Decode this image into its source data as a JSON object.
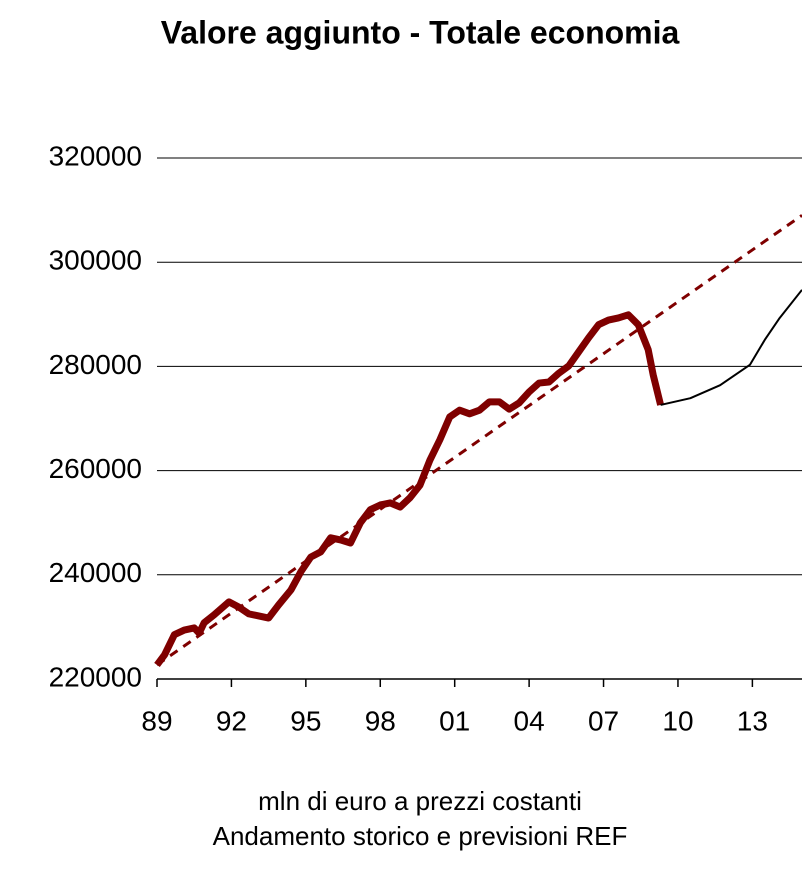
{
  "chart_data": {
    "type": "line",
    "title": "Valore aggiunto - Totale economia",
    "subtitle": [
      "mln di euro a prezzi costanti",
      "Andamento storico e previsioni REF"
    ],
    "xlim": [
      1989,
      2015
    ],
    "xticks": [
      {
        "value": 1989,
        "label": "89"
      },
      {
        "value": 1992,
        "label": "92"
      },
      {
        "value": 1995,
        "label": "95"
      },
      {
        "value": 1998,
        "label": "98"
      },
      {
        "value": 2001,
        "label": "01"
      },
      {
        "value": 2004,
        "label": "04"
      },
      {
        "value": 2007,
        "label": "07"
      },
      {
        "value": 2010,
        "label": "10"
      },
      {
        "value": 2013,
        "label": "13"
      }
    ],
    "ylim": [
      220000,
      320000
    ],
    "yticks": [
      220000,
      240000,
      260000,
      280000,
      300000,
      320000
    ],
    "grid": true,
    "series": [
      {
        "color": "#7f0000",
        "line_style": "solid",
        "x": [
          1989.0,
          1989.3,
          1989.7,
          1990.1,
          1990.5,
          1990.7,
          1990.9,
          1991.3,
          1991.9,
          1992.3,
          1992.7,
          1993.1,
          1993.5,
          1993.9,
          1994.4,
          1994.8,
          1995.2,
          1995.6,
          1996.0,
          1996.4,
          1996.8,
          1997.2,
          1997.6,
          1998.0,
          1998.4,
          1998.8,
          1999.2,
          1999.6,
          2000.0,
          2000.4,
          2000.8,
          2001.2,
          2001.6,
          2002.0,
          2002.4,
          2002.8,
          2003.2,
          2003.6,
          2004.0,
          2004.4,
          2004.8,
          2005.2,
          2005.6,
          2006.0,
          2006.4,
          2006.8,
          2007.2,
          2007.6,
          2008.0,
          2008.4,
          2008.8,
          2009.0,
          2009.3
        ],
        "values": [
          222700,
          224600,
          228500,
          229400,
          229800,
          228800,
          230800,
          232300,
          234800,
          233800,
          232500,
          232100,
          231700,
          234200,
          237100,
          240600,
          243400,
          244400,
          247100,
          246700,
          246100,
          250000,
          252500,
          253400,
          253800,
          253000,
          254800,
          257200,
          262000,
          265900,
          270300,
          271600,
          270900,
          271600,
          273200,
          273200,
          271800,
          273000,
          275100,
          276800,
          277000,
          278700,
          280100,
          282800,
          285500,
          288000,
          288900,
          289300,
          289900,
          288000,
          283200,
          278400,
          272600
        ]
      },
      {
        "color": "#000000",
        "line_style": "solid",
        "x": [
          2009.3,
          2010.5,
          2011.7,
          2012.9,
          2013.5,
          2014.1,
          2015.0
        ],
        "values": [
          272600,
          273900,
          276400,
          280300,
          285100,
          289300,
          294700
        ]
      },
      {
        "color": "#7f0000",
        "line_style": "dashed",
        "x": [
          1989.0,
          2015.0
        ],
        "values": [
          222700,
          309000
        ]
      }
    ]
  }
}
